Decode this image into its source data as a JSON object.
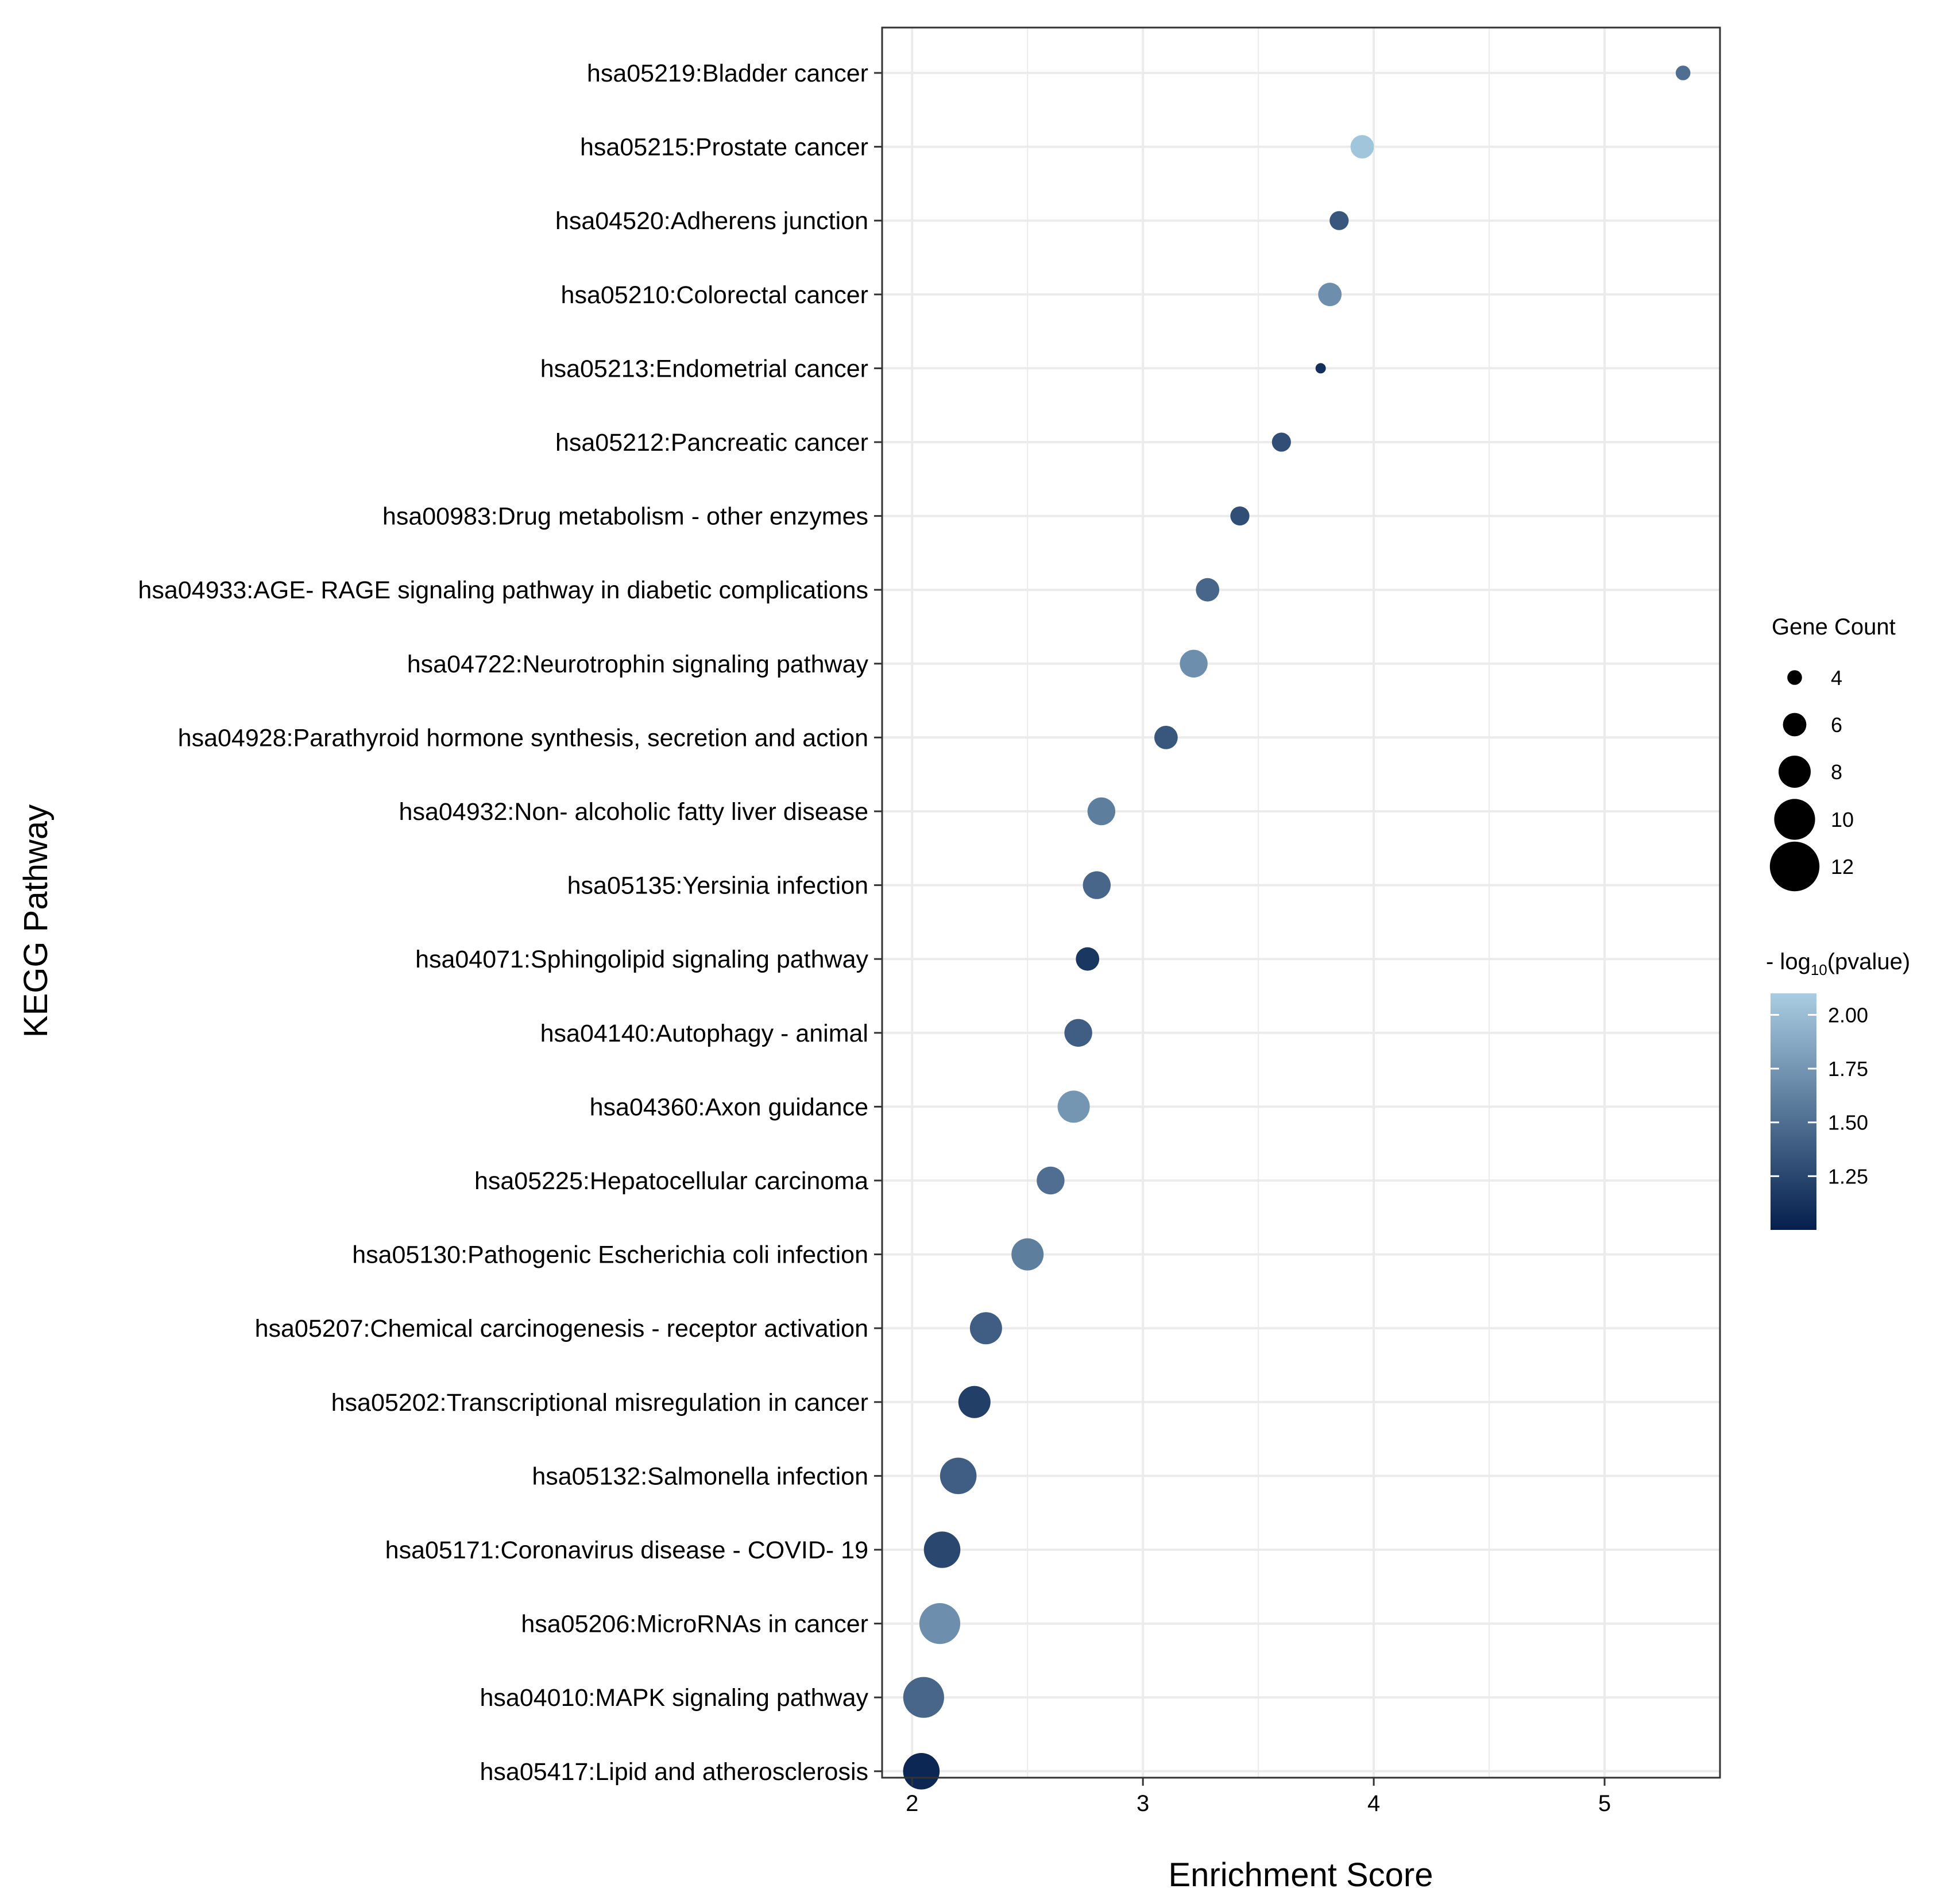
{
  "chart_data": {
    "type": "scatter",
    "xlabel": "Enrichment Score",
    "ylabel": "KEGG Pathway",
    "xlim": [
      1.87,
      5.5
    ],
    "xticks": [
      "2",
      "3",
      "4",
      "5"
    ],
    "grid": true,
    "legend_position": "right",
    "categories": [
      "hsa05219:Bladder cancer",
      "hsa05215:Prostate cancer",
      "hsa04520:Adherens junction",
      "hsa05210:Colorectal cancer",
      "hsa05213:Endometrial cancer",
      "hsa05212:Pancreatic cancer",
      "hsa00983:Drug metabolism -  other enzymes",
      "hsa04933:AGE- RAGE signaling pathway in diabetic complications",
      "hsa04722:Neurotrophin signaling pathway",
      "hsa04928:Parathyroid hormone synthesis, secretion and action",
      "hsa04932:Non- alcoholic fatty liver disease",
      "hsa05135:Yersinia infection",
      "hsa04071:Sphingolipid signaling pathway",
      "hsa04140:Autophagy -  animal",
      "hsa04360:Axon guidance",
      "hsa05225:Hepatocellular carcinoma",
      "hsa05130:Pathogenic Escherichia coli infection",
      "hsa05207:Chemical carcinogenesis -  receptor activation",
      "hsa05202:Transcriptional misregulation in cancer",
      "hsa05132:Salmonella infection",
      "hsa05171:Coronavirus disease -  COVID- 19",
      "hsa05206:MicroRNAs in cancer",
      "hsa04010:MAPK signaling pathway",
      "hsa05417:Lipid and atherosclerosis"
    ],
    "enrichment_score": [
      5.34,
      3.95,
      3.85,
      3.81,
      3.77,
      3.6,
      3.42,
      3.28,
      3.22,
      3.1,
      2.82,
      2.8,
      2.76,
      2.72,
      2.7,
      2.6,
      2.5,
      2.32,
      2.27,
      2.2,
      2.13,
      2.12,
      2.05,
      2.04
    ],
    "gene_count": [
      4,
      6,
      5,
      6,
      3,
      5,
      5,
      6,
      7,
      6,
      7,
      7,
      6,
      7,
      8,
      7,
      8,
      8,
      8,
      9,
      9,
      10,
      10,
      9
    ],
    "neg_log10_pvalue": [
      1.5,
      2.05,
      1.35,
      1.7,
      1.1,
      1.3,
      1.3,
      1.45,
      1.7,
      1.35,
      1.6,
      1.45,
      1.15,
      1.4,
      1.75,
      1.5,
      1.6,
      1.4,
      1.2,
      1.4,
      1.25,
      1.7,
      1.45,
      1.05
    ],
    "size_legend": {
      "title": "Gene Count",
      "values": [
        4,
        6,
        8,
        10,
        12
      ],
      "labels": [
        "4",
        "6",
        "8",
        "10",
        "12"
      ]
    },
    "color_legend": {
      "title_prefix": "- log",
      "title_subscript": "10",
      "title_suffix": "(pvalue)",
      "range": [
        1.0,
        2.1
      ],
      "ticks": [
        2.0,
        1.75,
        1.5,
        1.25
      ],
      "tick_labels": [
        "2.00",
        "1.75",
        "1.50",
        "1.25"
      ],
      "low_color": "#041f4d",
      "high_color": "#a9cde2"
    },
    "colors": {
      "grid": "#ebebeb",
      "panel_border": "#333333"
    }
  }
}
